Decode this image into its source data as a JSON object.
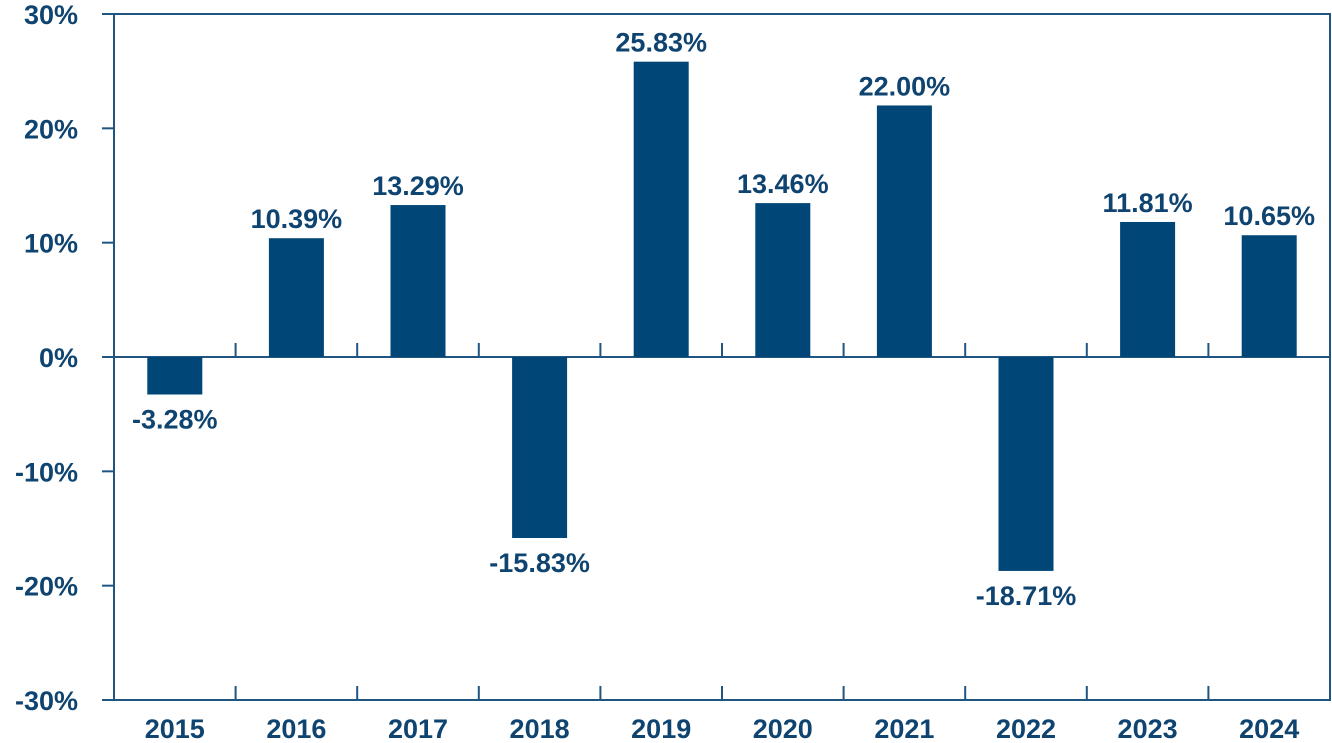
{
  "chart_data": {
    "type": "bar",
    "title": "",
    "xlabel": "",
    "ylabel": "",
    "categories": [
      "2015",
      "2016",
      "2017",
      "2018",
      "2019",
      "2020",
      "2021",
      "2022",
      "2023",
      "2024"
    ],
    "values": [
      -3.28,
      10.39,
      13.29,
      -15.83,
      25.83,
      13.46,
      22.0,
      -18.71,
      11.81,
      10.65
    ],
    "value_labels": [
      "-3.28%",
      "10.39%",
      "13.29%",
      "-15.83%",
      "25.83%",
      "13.46%",
      "22.00%",
      "-18.71%",
      "11.81%",
      "10.65%"
    ],
    "ylim": [
      -30,
      30
    ],
    "yticks": [
      30,
      20,
      10,
      0,
      -10,
      -20,
      -30
    ],
    "ytick_labels": [
      "30%",
      "20%",
      "10%",
      "0%",
      "-10%",
      "-20%",
      "-30%"
    ],
    "grid": false,
    "legend": "none",
    "colors": {
      "bar": "#004677",
      "axis": "#1f5580",
      "text": "#0f4470"
    }
  }
}
